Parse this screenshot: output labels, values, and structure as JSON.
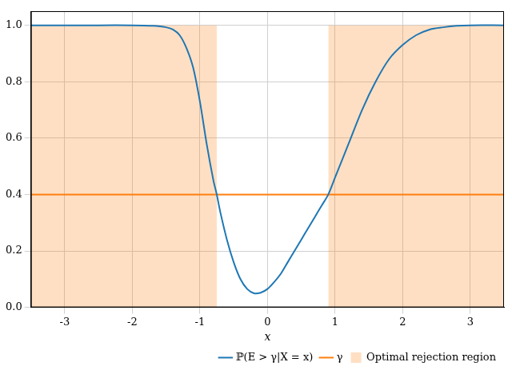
{
  "chart_data": {
    "type": "line",
    "x_label": "x",
    "x": [
      -3.5,
      -3.0,
      -2.5,
      -2.0,
      -1.7,
      -1.5,
      -1.4,
      -1.3,
      -1.2,
      -1.1,
      -1.0,
      -0.9,
      -0.8,
      -0.75,
      -0.7,
      -0.6,
      -0.5,
      -0.4,
      -0.3,
      -0.2,
      -0.1,
      0.0,
      0.1,
      0.2,
      0.3,
      0.4,
      0.5,
      0.6,
      0.7,
      0.8,
      0.9,
      1.0,
      1.2,
      1.4,
      1.6,
      1.8,
      2.0,
      2.2,
      2.4,
      2.6,
      2.8,
      3.0,
      3.5
    ],
    "series": [
      {
        "name": "ℙ(E > γ|X = x)",
        "color": "#1f77b4",
        "line_style": "solid",
        "values": [
          1.0,
          1.0,
          1.0,
          1.0,
          0.998,
          0.993,
          0.985,
          0.965,
          0.92,
          0.85,
          0.73,
          0.58,
          0.45,
          0.4,
          0.34,
          0.24,
          0.16,
          0.1,
          0.065,
          0.05,
          0.052,
          0.065,
          0.09,
          0.12,
          0.16,
          0.2,
          0.24,
          0.28,
          0.32,
          0.36,
          0.4,
          0.46,
          0.58,
          0.7,
          0.8,
          0.88,
          0.93,
          0.965,
          0.985,
          0.993,
          0.998,
          1.0,
          1.0
        ]
      },
      {
        "name": "γ",
        "color": "#ff7f0e",
        "line_style": "solid",
        "x": [
          -3.5,
          3.5
        ],
        "values": [
          0.4,
          0.4
        ]
      }
    ],
    "regions": {
      "name": "Optimal rejection region",
      "color": "#ff7f0e",
      "spans": [
        {
          "x": [
            -3.5,
            -0.75
          ],
          "y": [
            0,
            1
          ]
        },
        {
          "x": [
            0.9,
            3.5
          ],
          "y": [
            0,
            1
          ]
        }
      ]
    },
    "xlim": [
      -3.5,
      3.5
    ],
    "xticks": [
      -3,
      -2,
      -1,
      0,
      1,
      2,
      3
    ],
    "ylim": [
      0,
      1.05
    ],
    "yticks": [
      {
        "value": 0,
        "label": "0.0"
      },
      0.2,
      0.4,
      0.6,
      0.8,
      {
        "value": 1,
        "label": "1.0"
      }
    ],
    "grid": true,
    "legend": "lower right"
  }
}
